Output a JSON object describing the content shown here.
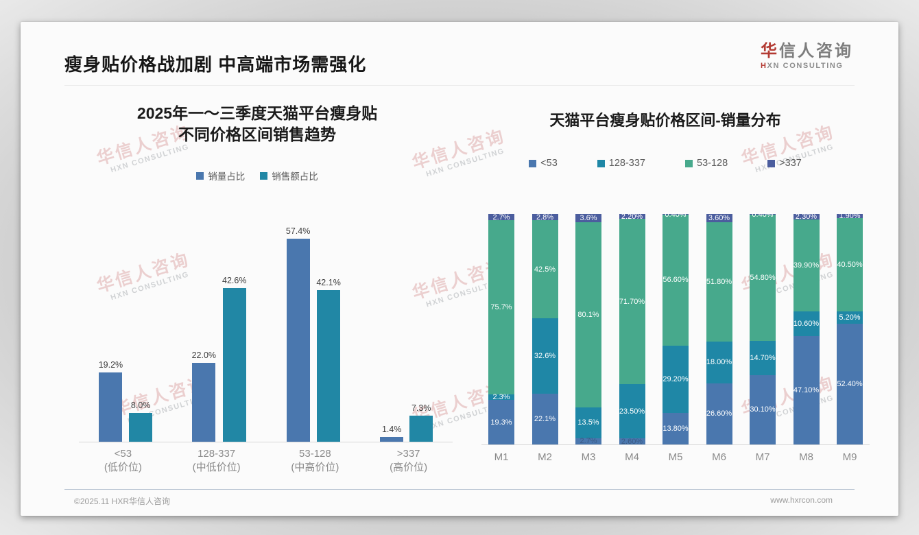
{
  "header": {
    "title": "瘦身贴价格战加剧 中高端市场需强化"
  },
  "logo": {
    "zh_red": "华",
    "zh_rest": "信人咨询",
    "en_red": "H",
    "en_rest": "XN CONSULTING"
  },
  "watermark": {
    "zh": "华信人咨询",
    "en": "HXN CONSULTING"
  },
  "chart_data": [
    {
      "type": "bar",
      "stacked": false,
      "title": "2025年一～三季度天猫平台瘦身贴\n不同价格区间销售趋势",
      "categories": [
        "<53",
        "128-337",
        "53-128",
        ">337"
      ],
      "category_sublabels": [
        "(低价位)",
        "(中低价位)",
        "(中高价位)",
        "(高价位)"
      ],
      "series": [
        {
          "name": "销量占比",
          "color": "#4a77ae",
          "values": [
            19.2,
            22.0,
            57.4,
            1.4
          ],
          "labels": [
            "19.2%",
            "22.0%",
            "57.4%",
            "1.4%"
          ]
        },
        {
          "name": "销售额占比",
          "color": "#2187a5",
          "values": [
            8.0,
            42.6,
            42.1,
            7.3
          ],
          "labels": [
            "8.0%",
            "42.6%",
            "42.1%",
            "7.3%"
          ]
        }
      ],
      "xlabel": "",
      "ylabel": "",
      "ylim": [
        0,
        60
      ],
      "grid": false,
      "legend_position": "top"
    },
    {
      "type": "bar",
      "stacked": true,
      "title": "天猫平台瘦身贴价格区间-销量分布",
      "categories": [
        "M1",
        "M2",
        "M3",
        "M4",
        "M5",
        "M6",
        "M7",
        "M8",
        "M9"
      ],
      "series": [
        {
          "name": "<53",
          "color": "#4a77ae",
          "values": [
            19.3,
            22.1,
            2.7,
            2.6,
            13.8,
            26.6,
            30.1,
            47.1,
            52.4
          ],
          "labels": [
            "19.3%",
            "22.1%",
            "2.7%",
            "2.60%",
            "13.80%",
            "26.60%",
            "30.10%",
            "47.10%",
            "52.40%"
          ]
        },
        {
          "name": "128-337",
          "color": "#1f87a6",
          "values": [
            2.3,
            32.6,
            13.5,
            23.5,
            29.2,
            18.0,
            14.7,
            10.6,
            5.2
          ],
          "labels": [
            "2.3%",
            "32.6%",
            "13.5%",
            "23.50%",
            "29.20%",
            "18.00%",
            "14.70%",
            "10.60%",
            "5.20%"
          ]
        },
        {
          "name": "53-128",
          "color": "#47a98c",
          "values": [
            75.7,
            42.5,
            80.1,
            71.7,
            56.6,
            51.8,
            54.8,
            39.9,
            40.5
          ],
          "labels": [
            "75.7%",
            "42.5%",
            "80.1%",
            "71.70%",
            "56.60%",
            "51.80%",
            "54.80%",
            "39.90%",
            "40.50%"
          ]
        },
        {
          "name": ">337",
          "color": "#4b5d9e",
          "values": [
            2.7,
            2.8,
            3.6,
            2.2,
            0.4,
            3.6,
            0.4,
            2.3,
            1.9
          ],
          "labels": [
            "2.7%",
            "2.8%",
            "3.6%",
            "2.20%",
            "0.40%",
            "3.60%",
            "0.40%",
            "2.30%",
            "1.90%"
          ]
        }
      ],
      "xlabel": "",
      "ylabel": "",
      "ylim": [
        0,
        100
      ],
      "grid": false,
      "legend_position": "top"
    }
  ],
  "footer": {
    "copyright": "©2025.11 HXR华信人咨询",
    "website": "www.hxrcon.com"
  }
}
